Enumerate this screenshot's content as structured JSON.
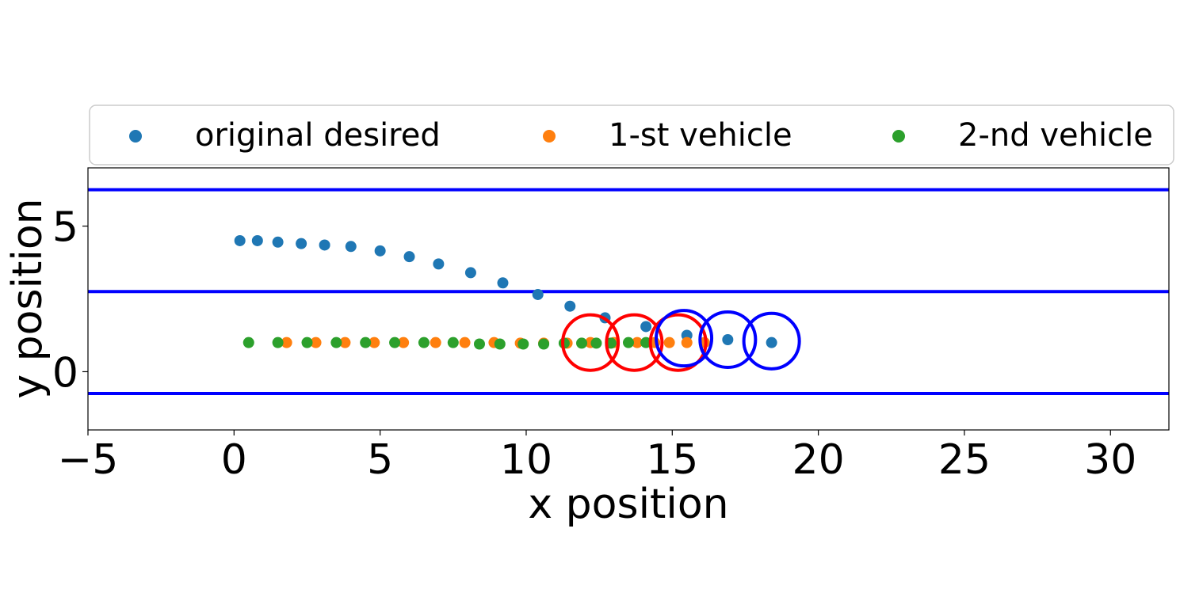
{
  "chart_data": {
    "type": "scatter",
    "title": "",
    "xlabel": "x position",
    "ylabel": "y position",
    "xlim": [
      -5,
      32
    ],
    "ylim": [
      -2,
      7
    ],
    "xticks": [
      -5,
      0,
      5,
      10,
      15,
      20,
      25,
      30
    ],
    "xtick_labels": [
      "−5",
      "0",
      "5",
      "10",
      "15",
      "20",
      "25",
      "30"
    ],
    "yticks": [
      0,
      5
    ],
    "ytick_labels": [
      "0",
      "5"
    ],
    "grid": false,
    "legend_position": "top, above plot, 3 columns",
    "series": [
      {
        "name": "original desired",
        "color": "#1f77b4",
        "x": [
          0.2,
          0.8,
          1.5,
          2.3,
          3.1,
          4.0,
          5.0,
          6.0,
          7.0,
          8.1,
          9.2,
          10.4,
          11.5,
          12.7,
          14.1,
          15.5,
          16.9,
          18.4
        ],
        "y": [
          4.5,
          4.5,
          4.45,
          4.4,
          4.35,
          4.3,
          4.15,
          3.95,
          3.7,
          3.4,
          3.05,
          2.65,
          2.25,
          1.85,
          1.55,
          1.25,
          1.1,
          1.0
        ]
      },
      {
        "name": "1-st vehicle",
        "color": "#ff7f0e",
        "x": [
          1.8,
          2.8,
          3.8,
          4.8,
          5.8,
          6.9,
          7.9,
          8.9,
          9.8,
          10.6,
          11.4,
          12.2,
          13.0,
          13.8,
          14.4,
          14.9,
          15.5,
          16.1
        ],
        "y": [
          1.0,
          1.0,
          1.0,
          1.0,
          1.0,
          1.0,
          1.0,
          1.0,
          0.98,
          0.98,
          0.98,
          1.0,
          1.0,
          1.0,
          1.0,
          1.0,
          1.0,
          1.0
        ]
      },
      {
        "name": "2-nd vehicle",
        "color": "#2ca02c",
        "x": [
          0.5,
          1.5,
          2.5,
          3.5,
          4.5,
          5.5,
          6.5,
          7.5,
          8.4,
          9.1,
          9.9,
          10.6,
          11.3,
          11.9,
          12.4,
          12.9,
          13.5,
          14.1
        ],
        "y": [
          1.0,
          1.0,
          1.0,
          1.0,
          1.0,
          1.0,
          1.0,
          1.0,
          0.95,
          0.95,
          0.95,
          0.95,
          0.98,
          0.98,
          0.98,
          0.98,
          1.0,
          1.0
        ]
      }
    ],
    "lane_lines": {
      "color": "#0000ff",
      "y": [
        6.25,
        2.75,
        -0.75
      ]
    },
    "circles": [
      {
        "color": "#ff0000",
        "cx": 12.2,
        "cy": 1.0,
        "r": 0.95
      },
      {
        "color": "#ff0000",
        "cx": 13.7,
        "cy": 1.0,
        "r": 0.95
      },
      {
        "color": "#ff0000",
        "cx": 15.2,
        "cy": 1.0,
        "r": 0.95
      },
      {
        "color": "#0000ff",
        "cx": 15.4,
        "cy": 1.15,
        "r": 0.95
      },
      {
        "color": "#0000ff",
        "cx": 16.9,
        "cy": 1.1,
        "r": 0.95
      },
      {
        "color": "#0000ff",
        "cx": 18.4,
        "cy": 1.05,
        "r": 0.95
      }
    ]
  }
}
